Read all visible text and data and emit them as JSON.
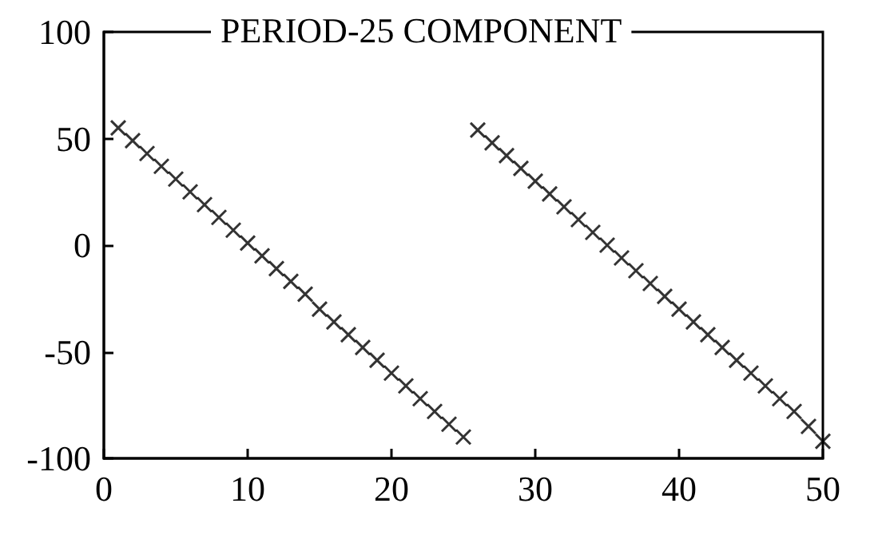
{
  "chart_data": {
    "type": "scatter",
    "title": "PERIOD-25 COMPONENT",
    "x": [
      1,
      2,
      3,
      4,
      5,
      6,
      7,
      8,
      9,
      10,
      11,
      12,
      13,
      14,
      15,
      16,
      17,
      18,
      19,
      20,
      21,
      22,
      23,
      24,
      25,
      26,
      27,
      28,
      29,
      30,
      31,
      32,
      33,
      34,
      35,
      36,
      37,
      38,
      39,
      40,
      41,
      42,
      43,
      44,
      45,
      46,
      47,
      48,
      49,
      50
    ],
    "series": [
      {
        "color": "#000000",
        "values": [
          55,
          49,
          43,
          37,
          31,
          25,
          19,
          13,
          7,
          1,
          -5,
          -11,
          -17,
          -23,
          -30,
          -36,
          -42,
          -48,
          -54,
          -60,
          -66,
          -72,
          -78,
          -84,
          -90,
          54,
          48,
          42,
          36,
          30,
          24,
          18,
          12,
          6,
          0,
          -6,
          -12,
          -18,
          -24,
          -30,
          -36,
          -42,
          -48,
          -54,
          -60,
          -66,
          -72,
          -78,
          -85,
          -92
        ]
      }
    ],
    "xlim": [
      0,
      50
    ],
    "xticks": [
      0,
      10,
      20,
      30,
      40,
      50
    ],
    "ylim": [
      -100,
      100
    ],
    "yticks": [
      -100,
      -50,
      0,
      50,
      100
    ],
    "marker": "cross",
    "grid": false
  }
}
